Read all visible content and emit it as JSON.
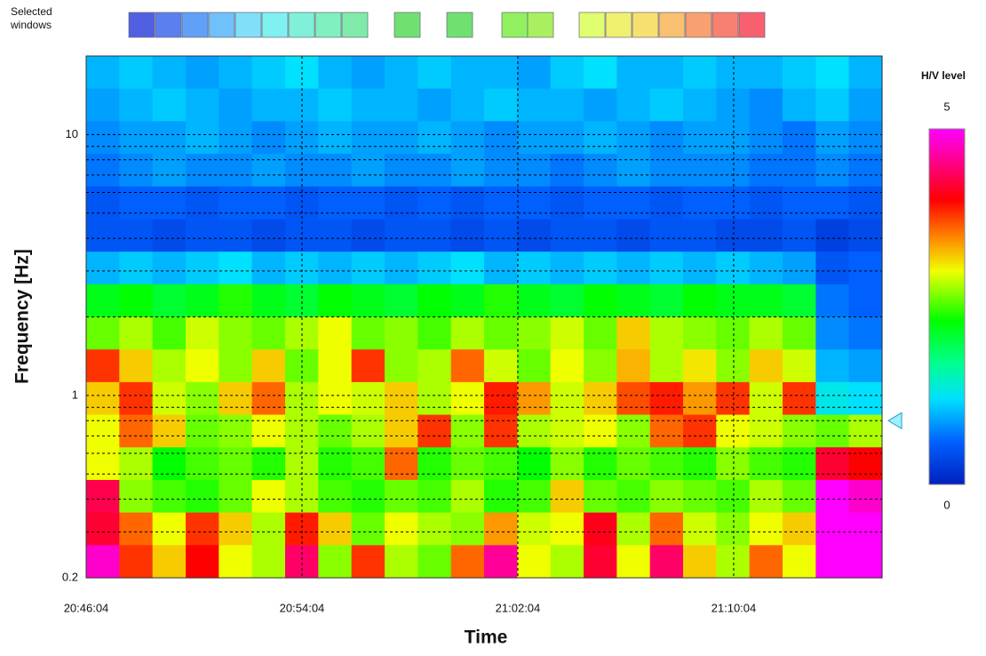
{
  "chart_data": {
    "type": "heatmap",
    "legend_title": "Selected\nwindows",
    "xlabel": "Time",
    "ylabel": "Frequency [Hz]",
    "xlim": [
      "20:46:04",
      "21:15:34"
    ],
    "xticks": [
      "20:46:04",
      "20:54:04",
      "21:02:04",
      "21:10:04"
    ],
    "ylim": [
      0.2,
      20
    ],
    "yscale": "log",
    "yticks": [
      0.2,
      1,
      10
    ],
    "yminor": [
      0.3,
      0.4,
      0.5,
      0.6,
      0.7,
      0.8,
      0.9,
      2,
      3,
      4,
      5,
      6,
      7,
      8,
      9
    ],
    "grid": true,
    "peak_frequency": 0.8,
    "colorbar": {
      "title": "H/V level",
      "lim": [
        0,
        5
      ],
      "ticks": [
        0,
        5
      ]
    },
    "z": [
      [
        1.0,
        1.1,
        1.0,
        0.9,
        1.0,
        1.1,
        1.2,
        1.0,
        0.9,
        1.0,
        1.1,
        1.0,
        1.0,
        0.9,
        1.1,
        1.2,
        1.0,
        1.0,
        1.1,
        1.0,
        1.0,
        1.1,
        1.2,
        1.0
      ],
      [
        0.9,
        1.0,
        1.1,
        1.0,
        0.9,
        1.0,
        1.0,
        1.1,
        1.0,
        1.0,
        0.9,
        1.0,
        1.1,
        1.0,
        1.0,
        0.9,
        1.0,
        1.1,
        1.0,
        0.9,
        0.8,
        1.0,
        1.1,
        0.9
      ],
      [
        0.8,
        0.9,
        0.9,
        1.0,
        0.9,
        0.8,
        0.9,
        1.0,
        0.9,
        0.9,
        1.0,
        0.9,
        0.8,
        0.9,
        0.9,
        1.0,
        0.9,
        0.8,
        0.9,
        0.9,
        0.8,
        0.7,
        0.9,
        0.8
      ],
      [
        0.7,
        0.8,
        0.9,
        0.8,
        0.8,
        0.9,
        0.8,
        0.8,
        0.9,
        0.8,
        0.8,
        0.9,
        0.8,
        0.8,
        0.7,
        0.8,
        0.9,
        0.8,
        0.8,
        0.8,
        0.7,
        0.7,
        0.8,
        0.7
      ],
      [
        0.5,
        0.6,
        0.6,
        0.5,
        0.6,
        0.6,
        0.5,
        0.6,
        0.6,
        0.5,
        0.6,
        0.5,
        0.6,
        0.6,
        0.5,
        0.6,
        0.6,
        0.5,
        0.6,
        0.6,
        0.5,
        0.6,
        0.6,
        0.5
      ],
      [
        0.5,
        0.5,
        0.4,
        0.5,
        0.5,
        0.4,
        0.5,
        0.5,
        0.4,
        0.5,
        0.5,
        0.4,
        0.5,
        0.4,
        0.5,
        0.5,
        0.4,
        0.5,
        0.5,
        0.4,
        0.4,
        0.5,
        0.3,
        0.4
      ],
      [
        1.0,
        1.1,
        1.0,
        1.1,
        1.2,
        1.0,
        1.1,
        1.0,
        1.1,
        1.0,
        1.1,
        1.2,
        1.0,
        1.1,
        1.0,
        1.1,
        1.0,
        1.1,
        1.0,
        1.1,
        1.0,
        0.9,
        0.5,
        0.6
      ],
      [
        2.2,
        2.3,
        2.1,
        2.2,
        2.4,
        2.2,
        2.1,
        2.3,
        2.2,
        2.1,
        2.3,
        2.2,
        2.4,
        2.2,
        2.1,
        2.3,
        2.2,
        2.1,
        2.3,
        2.2,
        2.2,
        2.1,
        0.7,
        0.6
      ],
      [
        2.6,
        2.8,
        2.5,
        2.9,
        2.7,
        2.6,
        2.8,
        3.0,
        2.6,
        2.7,
        2.5,
        2.8,
        2.6,
        2.7,
        2.9,
        2.6,
        3.2,
        2.8,
        2.7,
        2.6,
        2.8,
        2.6,
        0.8,
        0.7
      ],
      [
        3.8,
        3.2,
        2.8,
        3.0,
        2.7,
        3.2,
        2.6,
        3.0,
        3.8,
        2.7,
        2.8,
        3.6,
        2.9,
        2.6,
        3.0,
        2.7,
        3.3,
        2.8,
        3.1,
        2.7,
        3.2,
        2.9,
        1.0,
        0.9
      ],
      [
        3.2,
        3.8,
        2.9,
        2.7,
        3.2,
        3.6,
        2.8,
        3.0,
        2.9,
        3.2,
        2.8,
        3.0,
        3.9,
        3.4,
        2.9,
        3.2,
        3.7,
        3.9,
        3.4,
        3.8,
        2.9,
        3.8,
        1.3,
        1.2
      ],
      [
        3.0,
        3.6,
        3.2,
        2.6,
        2.7,
        3.0,
        2.8,
        2.6,
        2.8,
        3.2,
        3.8,
        2.7,
        3.8,
        2.8,
        2.9,
        3.0,
        2.7,
        3.6,
        3.8,
        3.0,
        2.9,
        2.7,
        2.6,
        2.8
      ],
      [
        3.0,
        2.8,
        2.3,
        2.5,
        2.6,
        2.4,
        2.8,
        2.4,
        2.5,
        3.6,
        2.4,
        2.6,
        2.5,
        2.3,
        2.7,
        2.4,
        2.6,
        2.5,
        2.4,
        2.7,
        2.5,
        2.4,
        4.2,
        4.0
      ],
      [
        4.3,
        2.7,
        2.5,
        2.4,
        2.6,
        3.0,
        2.8,
        2.5,
        2.4,
        2.6,
        2.5,
        2.8,
        2.4,
        2.5,
        3.2,
        2.6,
        2.5,
        2.7,
        2.6,
        2.5,
        2.8,
        2.6,
        5.0,
        4.8
      ],
      [
        4.2,
        3.6,
        3.0,
        3.8,
        3.2,
        2.8,
        3.9,
        3.2,
        2.6,
        3.0,
        2.8,
        2.7,
        3.4,
        2.9,
        3.0,
        4.1,
        2.8,
        3.6,
        2.9,
        2.7,
        3.0,
        3.2,
        5.0,
        5.0
      ],
      [
        4.8,
        3.8,
        3.2,
        4.0,
        3.0,
        2.8,
        4.4,
        2.7,
        3.8,
        2.8,
        2.6,
        3.6,
        4.6,
        3.0,
        2.8,
        4.2,
        3.0,
        4.4,
        3.2,
        2.8,
        3.6,
        3.0,
        5.0,
        5.0
      ]
    ]
  }
}
